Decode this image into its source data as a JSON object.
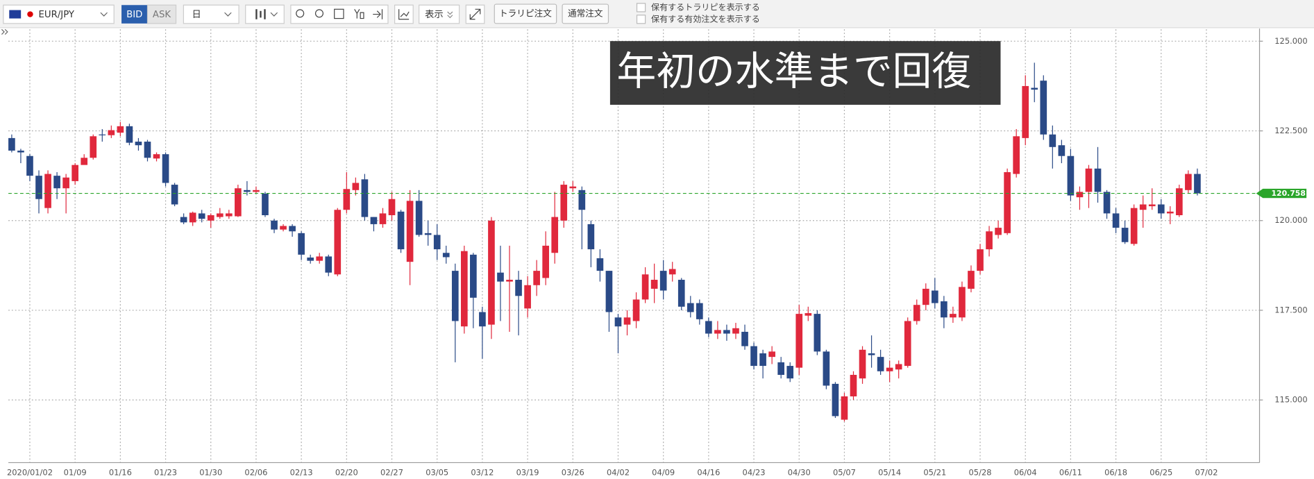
{
  "toolbar": {
    "symbol": "EUR/JPY",
    "bid": "BID",
    "ask": "ASK",
    "period": "日",
    "display": "表示",
    "traripi_order": "トラリピ注文",
    "normal_order": "通常注文",
    "checkboxes": [
      "保有するトラリピを表示する",
      "保有する有効注文を表示する"
    ]
  },
  "chart_data": {
    "type": "candlestick",
    "annotation": "年初の水準まで回復",
    "up_color": "#e0283c",
    "down_color": "#2a4a87",
    "grid": true,
    "categories": [
      null,
      null,
      "2020/01/02",
      null,
      null,
      null,
      null,
      "01/09",
      null,
      null,
      null,
      null,
      "01/16",
      null,
      null,
      null,
      null,
      "01/23",
      null,
      null,
      null,
      null,
      "01/30",
      null,
      null,
      null,
      null,
      "02/06",
      null,
      null,
      null,
      null,
      "02/13",
      null,
      null,
      null,
      null,
      "02/20",
      null,
      null,
      null,
      null,
      "02/27",
      null,
      null,
      null,
      null,
      "03/05",
      null,
      null,
      null,
      null,
      "03/12",
      null,
      null,
      null,
      null,
      "03/19",
      null,
      null,
      null,
      null,
      "03/26",
      null,
      null,
      null,
      null,
      "04/02",
      null,
      null,
      null,
      null,
      "04/09",
      null,
      null,
      null,
      null,
      "04/16",
      null,
      null,
      null,
      null,
      "04/23",
      null,
      null,
      null,
      null,
      "04/30",
      null,
      null,
      null,
      null,
      "05/07",
      null,
      null,
      null,
      null,
      "05/14",
      null,
      null,
      null,
      null,
      "05/21",
      null,
      null,
      null,
      null,
      "05/28",
      null,
      null,
      null,
      null,
      "06/04",
      null,
      null,
      null,
      null,
      "06/11",
      null,
      null,
      null,
      null,
      "06/18",
      null,
      null,
      null,
      null,
      "06/25",
      null,
      null,
      null,
      null,
      "07/02"
    ],
    "open": [
      122.3,
      121.95,
      121.8,
      121.25,
      120.35,
      121.25,
      120.9,
      121.1,
      121.55,
      121.75,
      122.4,
      122.38,
      122.45,
      122.63,
      122.2,
      122.2,
      121.73,
      121.85,
      121.0,
      120.1,
      119.95,
      120.2,
      120.0,
      120.1,
      120.12,
      120.12,
      120.85,
      120.8,
      120.75,
      120.0,
      119.75,
      119.85,
      119.65,
      118.97,
      118.88,
      119.0,
      118.5,
      120.3,
      120.85,
      121.15,
      120.1,
      119.9,
      120.15,
      120.25,
      118.85,
      120.55,
      119.65,
      119.6,
      119.1,
      118.6,
      117.05,
      119.05,
      117.45,
      117.1,
      118.55,
      118.3,
      118.35,
      117.55,
      118.2,
      118.4,
      119.1,
      120.0,
      120.9,
      120.85,
      119.9,
      118.95,
      118.6,
      117.3,
      117.1,
      117.2,
      117.8,
      118.1,
      118.6,
      118.5,
      118.35,
      117.7,
      117.7,
      117.2,
      116.85,
      116.95,
      116.85,
      116.9,
      116.5,
      116.3,
      116.2,
      116.05,
      115.95,
      115.9,
      117.35,
      117.4,
      116.35,
      115.45,
      114.45,
      115.1,
      115.6,
      116.3,
      116.2,
      115.8,
      115.85,
      115.95,
      117.2,
      117.65,
      118.05,
      117.75,
      117.3,
      117.3,
      118.1,
      118.6,
      119.2,
      119.6,
      119.65,
      121.3,
      122.3,
      123.7,
      123.9,
      122.4,
      122.1,
      121.8,
      120.65,
      120.8,
      121.45,
      120.8,
      120.2,
      119.8,
      119.35,
      120.3,
      120.4,
      120.45,
      120.2,
      120.15,
      120.85,
      121.3,
      null
    ],
    "high": [
      122.4,
      122.0,
      121.85,
      121.4,
      121.4,
      121.35,
      121.3,
      121.6,
      121.85,
      122.4,
      122.55,
      122.65,
      122.75,
      122.7,
      122.3,
      122.25,
      121.9,
      121.9,
      121.05,
      120.2,
      120.25,
      120.3,
      120.2,
      120.35,
      120.3,
      121.0,
      121.1,
      120.95,
      120.8,
      120.05,
      119.9,
      119.9,
      119.7,
      119.05,
      119.1,
      119.05,
      120.35,
      121.35,
      121.2,
      121.3,
      120.1,
      120.35,
      120.8,
      120.3,
      120.85,
      120.85,
      120.0,
      119.9,
      119.3,
      118.8,
      119.3,
      119.1,
      117.6,
      120.1,
      119.3,
      119.3,
      118.6,
      118.45,
      118.9,
      119.7,
      120.8,
      121.1,
      121.1,
      120.95,
      120.0,
      119.2,
      118.6,
      117.4,
      117.5,
      118.0,
      118.7,
      118.8,
      118.9,
      118.85,
      118.4,
      117.9,
      117.8,
      117.3,
      117.2,
      117.1,
      117.15,
      117.1,
      116.6,
      116.4,
      116.5,
      116.2,
      116.05,
      117.65,
      117.6,
      117.5,
      116.4,
      115.5,
      115.2,
      115.8,
      116.5,
      116.8,
      116.4,
      116.1,
      116.1,
      117.3,
      117.8,
      118.25,
      118.4,
      117.9,
      117.6,
      118.3,
      118.75,
      119.35,
      119.85,
      120.0,
      121.45,
      122.55,
      124.05,
      124.4,
      124.05,
      122.65,
      122.25,
      122.0,
      120.95,
      121.55,
      122.05,
      120.85,
      120.35,
      120.0,
      120.45,
      120.7,
      120.9,
      120.6,
      120.4,
      121.0,
      121.4,
      121.45,
      null
    ],
    "low": [
      121.9,
      121.6,
      121.1,
      120.2,
      120.2,
      120.6,
      120.2,
      121.0,
      121.6,
      121.7,
      122.2,
      122.3,
      122.35,
      122.1,
      121.95,
      121.65,
      121.65,
      120.95,
      120.4,
      119.9,
      119.85,
      119.95,
      119.8,
      120.05,
      120.05,
      120.1,
      120.7,
      120.75,
      120.1,
      119.65,
      119.7,
      119.55,
      118.9,
      118.8,
      118.8,
      118.45,
      118.45,
      120.2,
      120.7,
      120.0,
      119.7,
      119.8,
      120.0,
      119.1,
      118.2,
      119.55,
      119.3,
      118.9,
      118.8,
      116.05,
      116.85,
      117.0,
      116.15,
      116.7,
      117.2,
      116.9,
      116.8,
      117.3,
      117.9,
      118.2,
      118.8,
      119.8,
      120.8,
      119.2,
      118.7,
      118.3,
      116.9,
      116.3,
      116.8,
      117.0,
      117.7,
      117.7,
      117.8,
      118.3,
      117.5,
      117.3,
      117.1,
      116.75,
      116.7,
      116.65,
      116.7,
      116.4,
      115.85,
      115.6,
      116.0,
      115.6,
      115.5,
      115.7,
      117.2,
      116.25,
      115.3,
      114.5,
      114.4,
      115.0,
      115.45,
      115.9,
      115.7,
      115.5,
      115.6,
      115.9,
      117.1,
      117.5,
      117.55,
      117.0,
      117.15,
      117.2,
      118.0,
      118.5,
      119.0,
      119.5,
      119.6,
      121.2,
      122.1,
      123.3,
      122.25,
      121.45,
      121.6,
      120.55,
      120.3,
      120.35,
      120.5,
      120.05,
      119.65,
      119.35,
      119.3,
      119.8,
      120.3,
      120.05,
      119.9,
      120.1,
      120.75,
      120.7,
      null
    ],
    "close": [
      121.95,
      121.9,
      121.25,
      120.6,
      121.3,
      120.9,
      121.2,
      121.55,
      121.75,
      122.35,
      122.38,
      122.52,
      122.63,
      122.17,
      122.1,
      121.75,
      121.85,
      121.05,
      120.45,
      119.95,
      120.22,
      120.05,
      120.15,
      120.2,
      120.2,
      120.9,
      120.8,
      120.85,
      120.15,
      119.75,
      119.85,
      119.7,
      119.05,
      118.88,
      119.0,
      118.55,
      120.3,
      120.88,
      121.05,
      120.1,
      119.9,
      120.2,
      120.6,
      119.2,
      120.55,
      119.6,
      119.6,
      119.2,
      118.98,
      117.2,
      119.15,
      117.85,
      117.05,
      120.0,
      118.3,
      118.35,
      117.9,
      118.2,
      118.6,
      119.3,
      120.1,
      121.0,
      120.95,
      120.3,
      119.2,
      118.6,
      117.45,
      117.05,
      117.3,
      117.8,
      118.5,
      118.35,
      118.05,
      118.65,
      117.6,
      117.45,
      117.25,
      116.85,
      116.95,
      116.85,
      117.0,
      116.5,
      115.95,
      115.95,
      116.35,
      115.7,
      115.6,
      117.4,
      117.42,
      116.35,
      115.4,
      114.55,
      115.1,
      115.7,
      116.4,
      116.25,
      115.8,
      115.9,
      116.0,
      117.2,
      117.65,
      118.1,
      117.7,
      117.3,
      117.4,
      118.15,
      118.6,
      119.2,
      119.7,
      119.8,
      121.35,
      122.35,
      123.75,
      123.65,
      122.4,
      122.05,
      121.8,
      120.7,
      120.8,
      121.45,
      120.8,
      120.2,
      119.8,
      119.4,
      120.35,
      120.45,
      120.45,
      120.2,
      120.25,
      120.9,
      121.3,
      120.76,
      null
    ],
    "ylim": [
      113.3,
      125.33
    ],
    "yticks": [
      {
        "value": 115,
        "label": "115.000"
      },
      {
        "value": 117.5,
        "label": "117.500"
      },
      {
        "value": 120,
        "label": "120.000"
      },
      {
        "value": 122.5,
        "label": "122.500"
      },
      {
        "value": 125,
        "label": "125.000"
      }
    ],
    "last_price": {
      "value": 120.758,
      "label": "120.758",
      "color": "#2aa52a"
    }
  }
}
